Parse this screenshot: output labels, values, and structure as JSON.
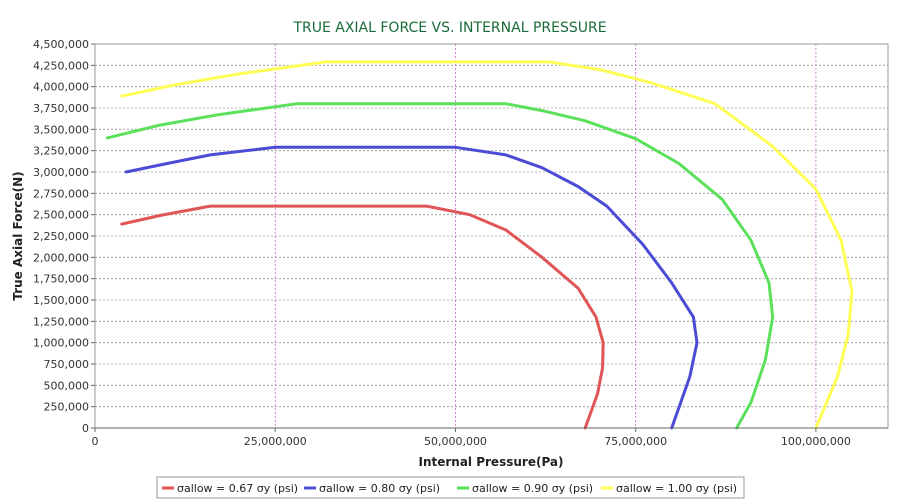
{
  "chart_data": {
    "type": "line",
    "title": "TRUE AXIAL FORCE VS. INTERNAL PRESSURE",
    "xlabel": "Internal Pressure(Pa)",
    "ylabel": "True Axial Force(N)",
    "xlim": [
      0,
      110000000
    ],
    "ylim": [
      0,
      4500000
    ],
    "x_ticks": [
      0,
      25000000,
      50000000,
      75000000,
      100000000
    ],
    "x_tick_labels": [
      "0",
      "25,000,000",
      "50,000,000",
      "75,000,000",
      "100,000,000"
    ],
    "y_ticks": [
      0,
      250000,
      500000,
      750000,
      1000000,
      1250000,
      1500000,
      1750000,
      2000000,
      2250000,
      2500000,
      2750000,
      3000000,
      3250000,
      3500000,
      3750000,
      4000000,
      4250000,
      4500000
    ],
    "y_tick_labels": [
      "0",
      "250,000",
      "500,000",
      "750,000",
      "1,000,000",
      "1,250,000",
      "1,500,000",
      "1,750,000",
      "2,000,000",
      "2,250,000",
      "2,500,000",
      "2,750,000",
      "3,000,000",
      "3,250,000",
      "3,500,000",
      "3,750,000",
      "4,000,000",
      "4,250,000",
      "4,500,000"
    ],
    "grid": true,
    "legend_position": "bottom",
    "title_color": "#1a6b3a",
    "series": [
      {
        "name": "σallow = 0.67 σy (psi)",
        "color": "#e05555",
        "points": [
          [
            3700000,
            2390000
          ],
          [
            9000000,
            2490000
          ],
          [
            16000000,
            2600000
          ],
          [
            46000000,
            2600000
          ],
          [
            52000000,
            2500000
          ],
          [
            57000000,
            2320000
          ],
          [
            62000000,
            2000000
          ],
          [
            67000000,
            1640000
          ],
          [
            69500000,
            1300000
          ],
          [
            70500000,
            1000000
          ],
          [
            70400000,
            700000
          ],
          [
            69700000,
            400000
          ],
          [
            68000000,
            0
          ]
        ]
      },
      {
        "name": "σallow = 0.80 σy (psi)",
        "color": "#4b4bd6",
        "points": [
          [
            4300000,
            3000000
          ],
          [
            10000000,
            3100000
          ],
          [
            16000000,
            3200000
          ],
          [
            25000000,
            3290000
          ],
          [
            50000000,
            3290000
          ],
          [
            57000000,
            3200000
          ],
          [
            62000000,
            3050000
          ],
          [
            67000000,
            2830000
          ],
          [
            71000000,
            2600000
          ],
          [
            76000000,
            2150000
          ],
          [
            80000000,
            1700000
          ],
          [
            83000000,
            1300000
          ],
          [
            83500000,
            1000000
          ],
          [
            82500000,
            600000
          ],
          [
            80000000,
            0
          ]
        ]
      },
      {
        "name": "σallow = 0.90 σy (psi)",
        "color": "#5ae05a",
        "points": [
          [
            1700000,
            3400000
          ],
          [
            9000000,
            3550000
          ],
          [
            17000000,
            3670000
          ],
          [
            28000000,
            3800000
          ],
          [
            57000000,
            3800000
          ],
          [
            62000000,
            3720000
          ],
          [
            68000000,
            3600000
          ],
          [
            75000000,
            3390000
          ],
          [
            81000000,
            3100000
          ],
          [
            87000000,
            2680000
          ],
          [
            91000000,
            2200000
          ],
          [
            93500000,
            1700000
          ],
          [
            94000000,
            1300000
          ],
          [
            93000000,
            800000
          ],
          [
            91000000,
            300000
          ],
          [
            89000000,
            0
          ]
        ]
      },
      {
        "name": "σallow = 1.00 σy (psi)",
        "color": "#ffff55",
        "points": [
          [
            3700000,
            3890000
          ],
          [
            11000000,
            4020000
          ],
          [
            20000000,
            4150000
          ],
          [
            32000000,
            4290000
          ],
          [
            63000000,
            4290000
          ],
          [
            70000000,
            4200000
          ],
          [
            77000000,
            4050000
          ],
          [
            86000000,
            3800000
          ],
          [
            94000000,
            3300000
          ],
          [
            100000000,
            2800000
          ],
          [
            103500000,
            2200000
          ],
          [
            105000000,
            1600000
          ],
          [
            104500000,
            1100000
          ],
          [
            103000000,
            600000
          ],
          [
            100000000,
            0
          ]
        ]
      }
    ]
  }
}
